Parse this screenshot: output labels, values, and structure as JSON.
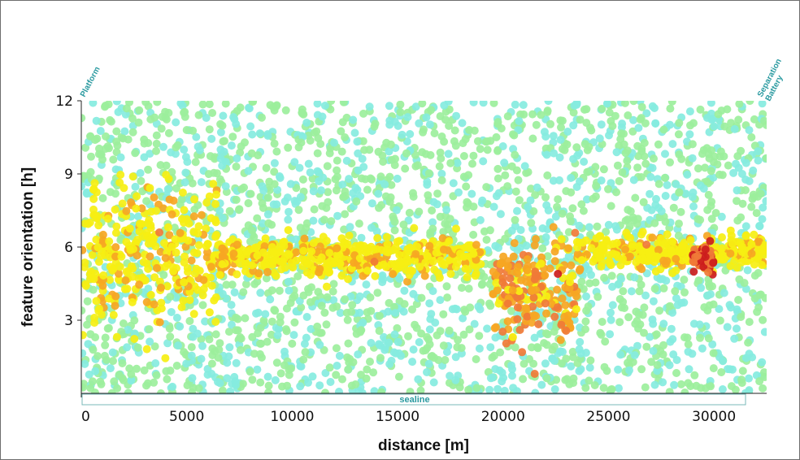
{
  "chart_data": {
    "type": "scatter",
    "xlabel": "distance [m]",
    "ylabel": "feature orientation [h]",
    "xlim": [
      0,
      32500
    ],
    "ylim": [
      0,
      12
    ],
    "x_ticks": [
      "0",
      "5000",
      "10000",
      "15000",
      "20000",
      "25000",
      "30000"
    ],
    "y_ticks": [
      "3",
      "6",
      "9",
      "12"
    ],
    "grid": false,
    "markers": [
      {
        "label": "Platform",
        "x": 0
      },
      {
        "label": "Separation Battery",
        "x": 32500
      }
    ],
    "band": {
      "label": "sealine",
      "x_from": 0,
      "x_to": 31500
    },
    "colors": {
      "low_cyan": "#86ecdf",
      "low_green": "#9cef9c",
      "mid_yellow": "#f6ef12",
      "high_orange": "#f6a623",
      "higher_orange": "#f07a37",
      "max_red": "#cc1d1d"
    },
    "clusters": [
      {
        "x_from": 0,
        "x_to": 6500,
        "y_center": 5.8,
        "spread": 2.6,
        "level": "yellow"
      },
      {
        "x_from": 6500,
        "x_to": 19000,
        "y_center": 5.6,
        "spread": 0.7,
        "level": "yellow"
      },
      {
        "x_from": 19500,
        "x_to": 23500,
        "y_center": 4.3,
        "spread": 1.8,
        "level": "orange"
      },
      {
        "x_from": 23500,
        "x_to": 32500,
        "y_center": 5.8,
        "spread": 0.6,
        "level": "yellow"
      },
      {
        "x_from": 29000,
        "x_to": 30000,
        "y_center": 5.5,
        "spread": 0.5,
        "level": "red"
      }
    ],
    "highlights": [
      {
        "x": 22600,
        "y": 4.9,
        "level": "red"
      },
      {
        "x": 29600,
        "y": 5.9,
        "level": "red"
      },
      {
        "x": 29600,
        "y": 5.6,
        "level": "red"
      },
      {
        "x": 3700,
        "y": 6.6,
        "level": "orange"
      },
      {
        "x": 21500,
        "y": 0.8,
        "level": "orange"
      },
      {
        "x": 20800,
        "y": 2.6,
        "level": "orange"
      },
      {
        "x": 13900,
        "y": 5.4,
        "level": "orange"
      },
      {
        "x": 26800,
        "y": 6.1,
        "level": "orange"
      }
    ]
  }
}
